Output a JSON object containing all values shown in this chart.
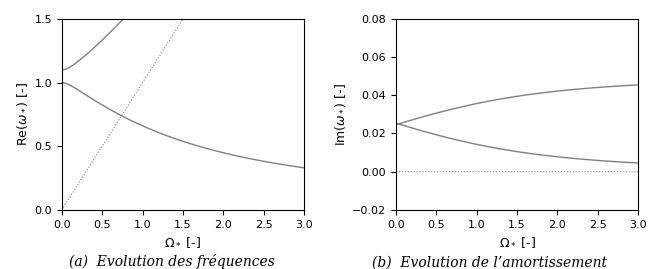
{
  "zeta_r": 0.025,
  "zeta_n": 0.0,
  "omega_1": 1.0,
  "omega_2": 1.1,
  "Omega_max": 3.0,
  "N_points": 3000,
  "left_xlim": [
    0,
    3
  ],
  "left_ylim": [
    0,
    1.5
  ],
  "right_xlim": [
    0,
    3
  ],
  "right_ylim": [
    -0.02,
    0.08
  ],
  "left_yticks": [
    0,
    0.5,
    1.0,
    1.5
  ],
  "right_yticks": [
    -0.02,
    0,
    0.02,
    0.04,
    0.06,
    0.08
  ],
  "xticks": [
    0,
    0.5,
    1,
    1.5,
    2,
    2.5,
    3
  ],
  "line_color": "#808080",
  "dotted_color": "#808080",
  "xlabel": "$\\Omega_*$ [-]",
  "left_ylabel": "Re$(\\omega_*)$ [-]",
  "right_ylabel": "Im$(\\omega_*)$ [-]",
  "left_caption": "(a)  Evolution des fréquences",
  "right_caption": "(b)  Evolution de l’amortissement",
  "caption_fontsize": 10
}
